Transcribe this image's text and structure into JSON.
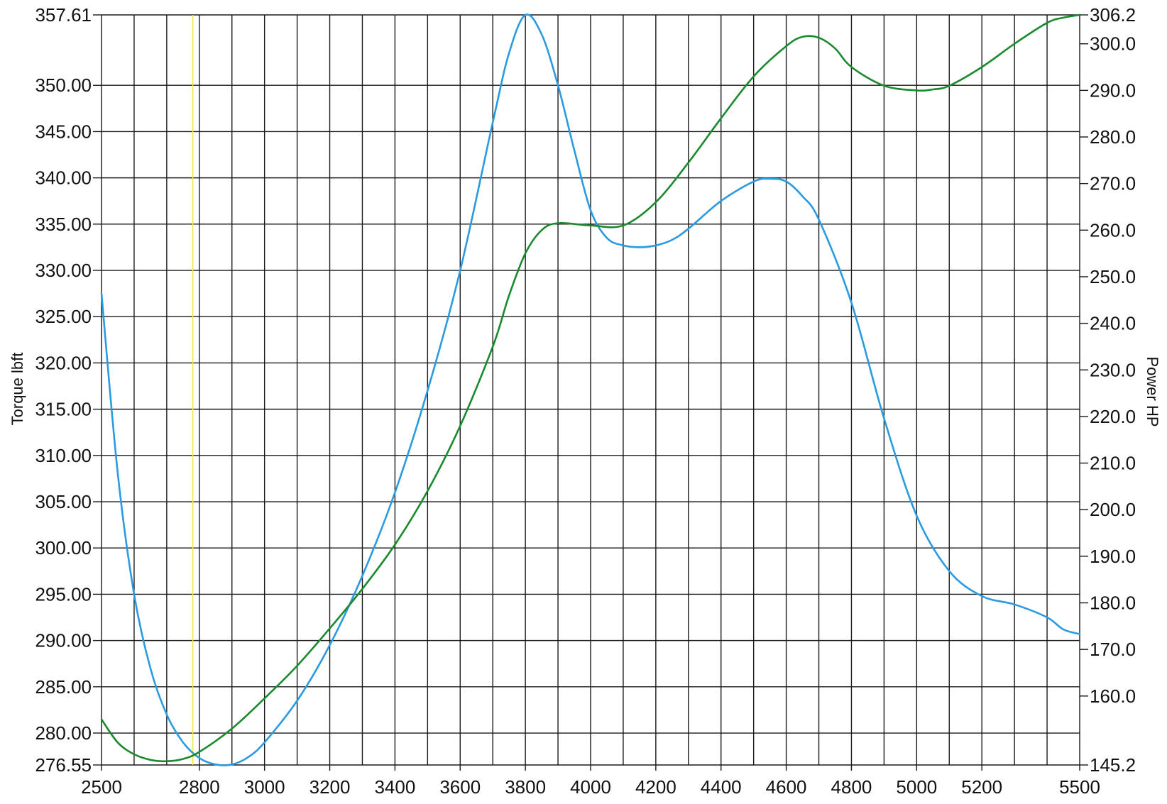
{
  "chart_data": {
    "type": "line",
    "xlabel": "",
    "ylabel": "Torque lbft",
    "y2label": "Power HP",
    "x_ticks": [
      2500,
      2800,
      3000,
      3200,
      3400,
      3600,
      3800,
      4000,
      4200,
      4400,
      4600,
      4800,
      5000,
      5200,
      5500
    ],
    "xlim": [
      2500,
      5500
    ],
    "ylim": [
      276.55,
      357.61
    ],
    "y2lim": [
      145.2,
      306.2
    ],
    "y_ticks": [
      "357.61",
      "350.00",
      "345.00",
      "340.00",
      "335.00",
      "330.00",
      "325.00",
      "320.00",
      "315.00",
      "310.00",
      "305.00",
      "300.00",
      "295.00",
      "290.00",
      "285.00",
      "280.00",
      "276.55"
    ],
    "y2_ticks": [
      "306.2",
      "300.0",
      "290.0",
      "280.0",
      "270.0",
      "260.0",
      "250.0",
      "240.0",
      "230.0",
      "220.0",
      "210.0",
      "200.0",
      "190.0",
      "180.0",
      "170.0",
      "160.0",
      "145.2"
    ],
    "grid": true,
    "legend": "none",
    "marker_line": {
      "x": 2780,
      "color": "#f2e64b"
    },
    "series": [
      {
        "axis": "left",
        "color": "#2a9be0",
        "x": [
          2500,
          2550,
          2600,
          2650,
          2700,
          2750,
          2800,
          2850,
          2900,
          2950,
          3000,
          3100,
          3200,
          3300,
          3400,
          3500,
          3600,
          3700,
          3750,
          3800,
          3850,
          3900,
          3950,
          4000,
          4050,
          4100,
          4150,
          4200,
          4250,
          4300,
          4400,
          4500,
          4550,
          4600,
          4650,
          4700,
          4800,
          4900,
          5000,
          5100,
          5200,
          5300,
          5400,
          5450,
          5500
        ],
        "y": [
          327.5,
          308.0,
          295.0,
          287.0,
          282.0,
          279.0,
          277.3,
          276.6,
          276.6,
          277.4,
          279.0,
          283.5,
          289.5,
          297.0,
          306.0,
          317.0,
          330.0,
          346.0,
          353.5,
          357.6,
          355.5,
          350.0,
          343.0,
          336.5,
          333.5,
          332.7,
          332.5,
          332.7,
          333.3,
          334.5,
          337.5,
          339.6,
          339.9,
          339.6,
          338.0,
          335.5,
          326.5,
          314.0,
          303.5,
          297.5,
          294.8,
          293.9,
          292.5,
          291.2,
          290.7
        ]
      },
      {
        "axis": "right",
        "color": "#1a8a2e",
        "x": [
          2500,
          2550,
          2600,
          2650,
          2700,
          2750,
          2800,
          2900,
          3000,
          3100,
          3200,
          3300,
          3400,
          3500,
          3600,
          3700,
          3750,
          3800,
          3850,
          3900,
          4000,
          4100,
          4200,
          4300,
          4400,
          4500,
          4600,
          4650,
          4700,
          4750,
          4800,
          4900,
          5000,
          5050,
          5100,
          5200,
          5300,
          5400,
          5450,
          5500
        ],
        "y": [
          155.0,
          150.0,
          147.5,
          146.3,
          146.0,
          146.5,
          148.0,
          153.0,
          159.5,
          166.5,
          174.5,
          183.0,
          192.5,
          204.0,
          218.0,
          235.0,
          246.0,
          255.0,
          260.0,
          261.5,
          261.0,
          261.0,
          266.0,
          274.5,
          284.0,
          293.0,
          299.5,
          301.5,
          301.3,
          299.0,
          295.0,
          291.0,
          290.0,
          290.2,
          291.0,
          295.0,
          300.0,
          304.5,
          305.6,
          306.2
        ]
      }
    ]
  }
}
